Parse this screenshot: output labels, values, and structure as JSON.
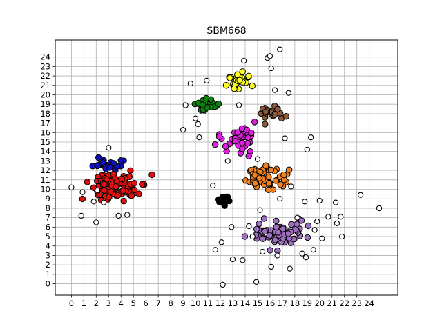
{
  "chart_data": {
    "type": "scatter",
    "title": "SBM668",
    "xlabel": "",
    "ylabel": "",
    "xlim": [
      -1.3,
      26.3
    ],
    "ylim": [
      -1.2,
      25.8
    ],
    "x_ticks": [
      "0",
      "1",
      "2",
      "3",
      "4",
      "5",
      "6",
      "7",
      "8",
      "9",
      "10",
      "11",
      "12",
      "13",
      "14",
      "15",
      "16",
      "17",
      "18",
      "19",
      "20",
      "21",
      "22",
      "23",
      "24"
    ],
    "y_ticks": [
      "0",
      "1",
      "2",
      "3",
      "4",
      "5",
      "6",
      "7",
      "8",
      "9",
      "10",
      "11",
      "12",
      "13",
      "14",
      "15",
      "16",
      "17",
      "18",
      "19",
      "20",
      "21",
      "22",
      "23",
      "24"
    ],
    "grid": true,
    "legend": false,
    "clusters": [
      {
        "color": "#1010c0",
        "center": [
          3.3,
          12.6
        ],
        "spread": [
          1.3,
          0.5
        ],
        "count": 28
      },
      {
        "color": "#e01010",
        "center": [
          3.7,
          10.2
        ],
        "spread": [
          1.7,
          1.3
        ],
        "count": 110
      },
      {
        "color": "#ffff20",
        "center": [
          13.4,
          21.4
        ],
        "spread": [
          1.0,
          0.8
        ],
        "count": 25
      },
      {
        "color": "#108010",
        "center": [
          11.1,
          18.9
        ],
        "spread": [
          0.9,
          0.5
        ],
        "count": 24
      },
      {
        "color": "#8b5a3c",
        "center": [
          16.1,
          18.1
        ],
        "spread": [
          1.0,
          0.9
        ],
        "count": 22
      },
      {
        "color": "#e020e0",
        "center": [
          13.4,
          15.5
        ],
        "spread": [
          1.6,
          1.3
        ],
        "count": 45
      },
      {
        "color": "#f08020",
        "center": [
          15.6,
          11.3
        ],
        "spread": [
          1.4,
          1.3
        ],
        "count": 60
      },
      {
        "color": "#000000",
        "center": [
          12.4,
          8.9
        ],
        "spread": [
          0.5,
          0.5
        ],
        "count": 16
      },
      {
        "color": "#a070c0",
        "center": [
          16.6,
          5.3
        ],
        "spread": [
          1.8,
          1.1
        ],
        "count": 75
      }
    ],
    "outliers": [
      [
        0.0,
        10.2
      ],
      [
        0.8,
        7.2
      ],
      [
        0.9,
        9.7
      ],
      [
        1.8,
        8.7
      ],
      [
        2.0,
        6.5
      ],
      [
        2.1,
        9.9
      ],
      [
        2.6,
        8.6
      ],
      [
        3.0,
        14.4
      ],
      [
        3.8,
        7.2
      ],
      [
        4.5,
        7.3
      ],
      [
        9.0,
        16.3
      ],
      [
        9.2,
        18.9
      ],
      [
        9.6,
        21.2
      ],
      [
        10.0,
        17.5
      ],
      [
        10.2,
        16.9
      ],
      [
        10.3,
        15.5
      ],
      [
        10.9,
        21.5
      ],
      [
        11.4,
        10.4
      ],
      [
        11.6,
        3.6
      ],
      [
        12.1,
        4.4
      ],
      [
        12.2,
        -0.1
      ],
      [
        12.6,
        13.0
      ],
      [
        12.9,
        6.0
      ],
      [
        13.0,
        2.6
      ],
      [
        13.5,
        18.9
      ],
      [
        13.8,
        2.5
      ],
      [
        13.9,
        23.6
      ],
      [
        14.3,
        6.1
      ],
      [
        14.6,
        5.0
      ],
      [
        14.9,
        0.2
      ],
      [
        15.0,
        13.2
      ],
      [
        15.2,
        7.8
      ],
      [
        15.4,
        3.4
      ],
      [
        15.8,
        23.9
      ],
      [
        16.0,
        24.1
      ],
      [
        16.1,
        1.8
      ],
      [
        16.1,
        22.8
      ],
      [
        16.4,
        20.5
      ],
      [
        16.6,
        3.0
      ],
      [
        16.8,
        24.8
      ],
      [
        16.8,
        9.0
      ],
      [
        17.2,
        15.4
      ],
      [
        17.5,
        20.2
      ],
      [
        17.6,
        1.6
      ],
      [
        17.7,
        10.3
      ],
      [
        18.2,
        7.0
      ],
      [
        18.6,
        3.2
      ],
      [
        18.8,
        8.7
      ],
      [
        18.9,
        2.8
      ],
      [
        19.0,
        14.2
      ],
      [
        19.3,
        15.5
      ],
      [
        19.5,
        3.6
      ],
      [
        19.6,
        5.7
      ],
      [
        19.8,
        6.6
      ],
      [
        20.0,
        8.8
      ],
      [
        20.2,
        4.8
      ],
      [
        20.7,
        7.1
      ],
      [
        21.3,
        8.6
      ],
      [
        21.4,
        6.4
      ],
      [
        21.7,
        7.1
      ],
      [
        21.8,
        5.0
      ],
      [
        23.3,
        9.4
      ],
      [
        24.8,
        8.0
      ]
    ]
  }
}
